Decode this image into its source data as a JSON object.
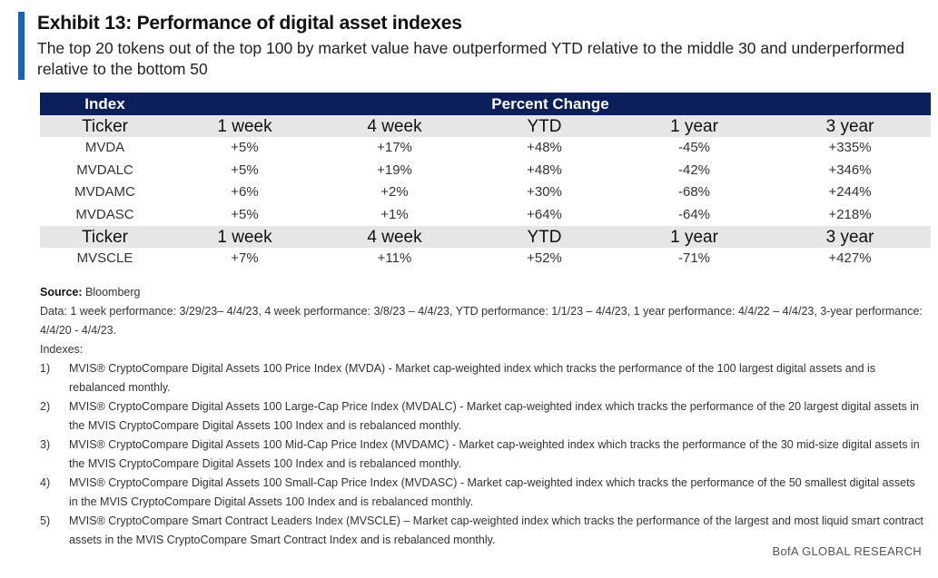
{
  "header": {
    "title": "Exhibit 13: Performance of digital asset indexes",
    "subtitle": "The top 20 tokens out of the top 100 by market value have outperformed YTD relative to the middle 30 and underperformed relative to the bottom 50"
  },
  "table": {
    "group_headers": [
      "Index",
      "Percent Change"
    ],
    "columns": [
      "Ticker",
      "1 week",
      "4 week",
      "YTD",
      "1 year",
      "3 year"
    ],
    "rows_group1": [
      [
        "MVDA",
        "+5%",
        "+17%",
        "+48%",
        "-45%",
        "+335%"
      ],
      [
        "MVDALC",
        "+5%",
        "+19%",
        "+48%",
        "-42%",
        "+346%"
      ],
      [
        "MVDAMC",
        "+6%",
        "+2%",
        "+30%",
        "-68%",
        "+244%"
      ],
      [
        "MVDASC",
        "+5%",
        "+1%",
        "+64%",
        "-64%",
        "+218%"
      ]
    ],
    "rows_group2": [
      [
        "MVSCLE",
        "+7%",
        "+11%",
        "+52%",
        "-71%",
        "+427%"
      ]
    ]
  },
  "notes": {
    "source_label": "Source:",
    "source_value": "Bloomberg",
    "data_line": "Data: 1 week performance: 3/29/23– 4/4/23, 4 week performance: 3/8/23 – 4/4/23, YTD performance: 1/1/23 – 4/4/23, 1 year performance: 4/4/22 – 4/4/23, 3-year performance: 4/4/20 - 4/4/23.",
    "indexes_label": "Indexes:",
    "items": [
      {
        "num": "1)",
        "text": "MVIS® CryptoCompare Digital Assets 100 Price Index (MVDA) - Market cap-weighted index which tracks the performance of the 100 largest digital assets and is rebalanced monthly."
      },
      {
        "num": "2)",
        "text": "MVIS® CryptoCompare Digital Assets 100 Large-Cap Price Index (MVDALC) - Market cap-weighted index which tracks the performance of the 20 largest digital assets in the MVIS CryptoCompare Digital Assets 100 Index and is rebalanced monthly."
      },
      {
        "num": "3)",
        "text": "MVIS® CryptoCompare Digital Assets 100 Mid-Cap Price Index (MVDAMC) - Market cap-weighted index which tracks the performance of the 30 mid-size digital assets in the MVIS CryptoCompare Digital Assets 100 Index and is rebalanced monthly."
      },
      {
        "num": "4)",
        "text": "MVIS® CryptoCompare Digital Assets 100 Small-Cap Price Index (MVDASC) - Market cap-weighted index which tracks the performance of the 50 smallest digital assets in the MVIS CryptoCompare Digital Assets 100 Index and is rebalanced monthly."
      },
      {
        "num": "5)",
        "text": "MVIS® CryptoCompare Smart Contract Leaders Index (MVSCLE) – Market cap-weighted index which tracks the performance of the largest and most liquid smart contract assets in the MVIS CryptoCompare Smart Contract Index and is rebalanced monthly."
      }
    ]
  },
  "footer": {
    "brand": "BofA GLOBAL RESEARCH"
  },
  "colors": {
    "accent": "#1b5fbf",
    "header_bg": "#0b1f5c",
    "subheader_bg": "#e6e6e6"
  }
}
